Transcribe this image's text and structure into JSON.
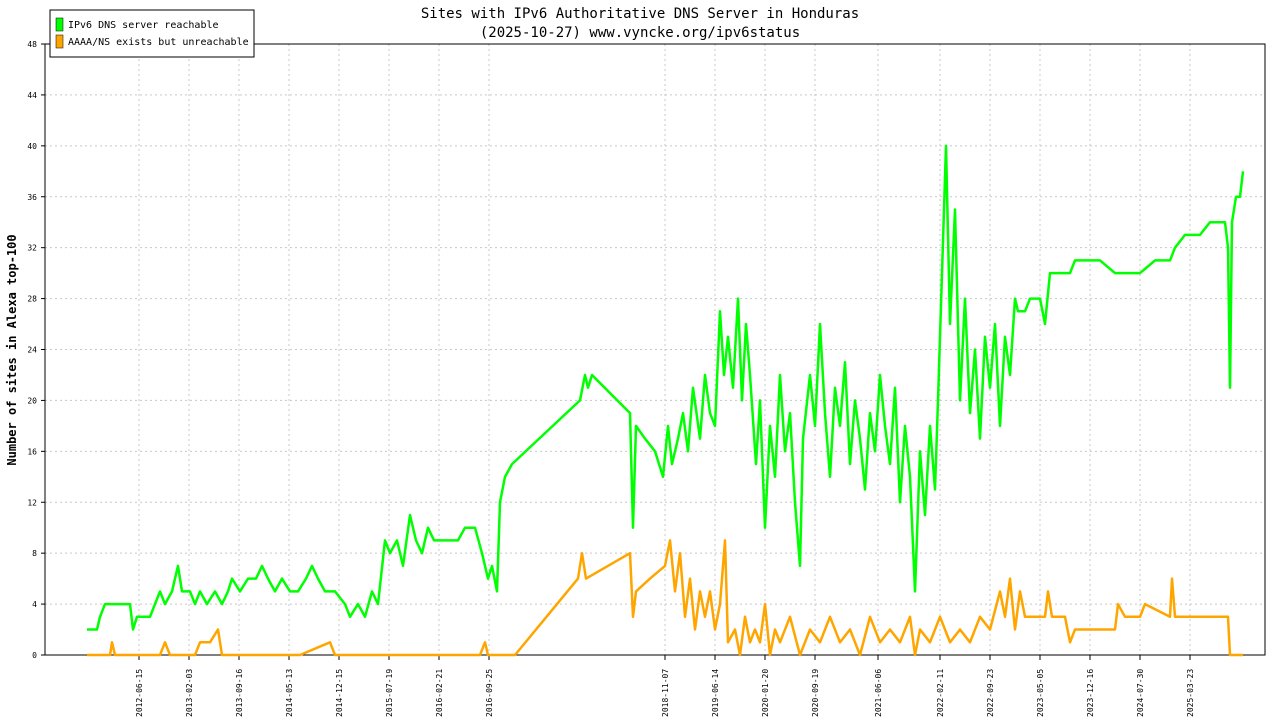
{
  "chart_data": {
    "type": "line",
    "title": "Sites with IPv6 Authoritative DNS Server in Honduras",
    "subtitle": "(2025-10-27) www.vyncke.org/ipv6status",
    "y_label": "Number of sites in Alexa top-100",
    "xlim": [
      45,
      1265
    ],
    "ylim": [
      0,
      48
    ],
    "yticks": [
      0,
      4,
      8,
      12,
      16,
      20,
      24,
      28,
      32,
      36,
      40,
      44,
      48
    ],
    "xticks": [
      {
        "value": 139,
        "label": "2012-06-15"
      },
      {
        "value": 189,
        "label": "2013-02-03"
      },
      {
        "value": 239,
        "label": "2013-09-16"
      },
      {
        "value": 289,
        "label": "2014-05-13"
      },
      {
        "value": 339,
        "label": "2014-12-15"
      },
      {
        "value": 389,
        "label": "2015-07-19"
      },
      {
        "value": 439,
        "label": "2016-02-21"
      },
      {
        "value": 489,
        "label": "2016-09-25"
      },
      {
        "value": 665,
        "label": "2018-11-07"
      },
      {
        "value": 715,
        "label": "2019-06-14"
      },
      {
        "value": 765,
        "label": "2020-01-20"
      },
      {
        "value": 815,
        "label": "2020-09-19"
      },
      {
        "value": 878,
        "label": "2021-06-06"
      },
      {
        "value": 940,
        "label": "2022-02-11"
      },
      {
        "value": 990,
        "label": "2022-09-23"
      },
      {
        "value": 1040,
        "label": "2023-05-05"
      },
      {
        "value": 1090,
        "label": "2023-12-16"
      },
      {
        "value": 1140,
        "label": "2024-07-30"
      },
      {
        "value": 1190,
        "label": "2025-03-23"
      }
    ],
    "grid": true,
    "legend": "top-left",
    "series": [
      {
        "name": "IPv6 DNS server reachable",
        "color": "#00ff00",
        "x": [
          87,
          97,
          100,
          105,
          130,
          133,
          137,
          145,
          150,
          155,
          160,
          165,
          172,
          178,
          182,
          190,
          195,
          200,
          207,
          215,
          222,
          228,
          232,
          240,
          248,
          256,
          262,
          268,
          275,
          282,
          290,
          298,
          306,
          312,
          318,
          325,
          335,
          345,
          350,
          358,
          365,
          372,
          378,
          385,
          390,
          397,
          403,
          410,
          416,
          422,
          428,
          434,
          442,
          450,
          458,
          465,
          475,
          482,
          488,
          492,
          497,
          500,
          505,
          512,
          580,
          585,
          588,
          592,
          630,
          633,
          636,
          645,
          655,
          663,
          668,
          672,
          678,
          683,
          688,
          693,
          700,
          705,
          710,
          715,
          720,
          724,
          728,
          733,
          738,
          742,
          746,
          750,
          756,
          760,
          765,
          770,
          775,
          780,
          785,
          790,
          795,
          800,
          803,
          810,
          815,
          820,
          825,
          830,
          835,
          840,
          845,
          850,
          855,
          860,
          865,
          870,
          875,
          880,
          885,
          890,
          895,
          900,
          905,
          910,
          915,
          920,
          925,
          930,
          935,
          938,
          942,
          946,
          950,
          955,
          960,
          965,
          970,
          975,
          980,
          985,
          990,
          995,
          1000,
          1005,
          1010,
          1015,
          1018,
          1025,
          1030,
          1040,
          1045,
          1050,
          1070,
          1075,
          1100,
          1115,
          1125,
          1140,
          1155,
          1170,
          1175,
          1185,
          1200,
          1210,
          1225,
          1228,
          1230,
          1232,
          1236,
          1240,
          1243
        ],
        "values": [
          2,
          2,
          3,
          4,
          4,
          2,
          3,
          3,
          3,
          4,
          5,
          4,
          5,
          7,
          5,
          5,
          4,
          5,
          4,
          5,
          4,
          5,
          6,
          5,
          6,
          6,
          7,
          6,
          5,
          6,
          5,
          5,
          6,
          7,
          6,
          5,
          5,
          4,
          3,
          4,
          3,
          5,
          4,
          9,
          8,
          9,
          7,
          11,
          9,
          8,
          10,
          9,
          9,
          9,
          9,
          10,
          10,
          8,
          6,
          7,
          5,
          12,
          14,
          15,
          20,
          22,
          21,
          22,
          19,
          10,
          18,
          17,
          16,
          14,
          18,
          15,
          17,
          19,
          16,
          21,
          17,
          22,
          19,
          18,
          27,
          22,
          25,
          21,
          28,
          20,
          26,
          22,
          15,
          20,
          10,
          18,
          14,
          22,
          16,
          19,
          12,
          7,
          17,
          22,
          18,
          26,
          19,
          14,
          21,
          18,
          23,
          15,
          20,
          17,
          13,
          19,
          16,
          22,
          18,
          15,
          21,
          12,
          18,
          14,
          5,
          16,
          11,
          18,
          13,
          20,
          30,
          40,
          26,
          35,
          20,
          28,
          19,
          24,
          17,
          25,
          21,
          26,
          18,
          25,
          22,
          28,
          27,
          27,
          28,
          28,
          26,
          30,
          30,
          31,
          31,
          30,
          30,
          30,
          31,
          31,
          32,
          33,
          33,
          34,
          34,
          32,
          21,
          34,
          36,
          36,
          38
        ]
      },
      {
        "name": "AAAA/NS exists but unreachable",
        "color": "#ffa500",
        "x": [
          87,
          110,
          112,
          115,
          160,
          165,
          170,
          195,
          200,
          210,
          218,
          222,
          300,
          330,
          335,
          480,
          485,
          488,
          515,
          578,
          582,
          586,
          630,
          633,
          636,
          650,
          665,
          670,
          675,
          680,
          685,
          690,
          695,
          700,
          705,
          710,
          715,
          720,
          725,
          728,
          735,
          740,
          745,
          750,
          755,
          760,
          765,
          770,
          775,
          780,
          790,
          800,
          810,
          820,
          830,
          840,
          850,
          860,
          870,
          880,
          890,
          900,
          910,
          915,
          920,
          930,
          940,
          950,
          960,
          970,
          980,
          990,
          1000,
          1005,
          1010,
          1015,
          1020,
          1025,
          1045,
          1048,
          1052,
          1065,
          1070,
          1075,
          1115,
          1118,
          1125,
          1140,
          1145,
          1170,
          1172,
          1175,
          1200,
          1228,
          1230,
          1243
        ],
        "values": [
          0,
          0,
          1,
          0,
          0,
          1,
          0,
          0,
          1,
          1,
          2,
          0,
          0,
          1,
          0,
          0,
          1,
          0,
          0,
          6,
          8,
          6,
          8,
          3,
          5,
          6,
          7,
          9,
          5,
          8,
          3,
          6,
          2,
          5,
          3,
          5,
          2,
          4,
          9,
          1,
          2,
          0,
          3,
          1,
          2,
          1,
          4,
          0,
          2,
          1,
          3,
          0,
          2,
          1,
          3,
          1,
          2,
          0,
          3,
          1,
          2,
          1,
          3,
          0,
          2,
          1,
          3,
          1,
          2,
          1,
          3,
          2,
          5,
          3,
          6,
          2,
          5,
          3,
          3,
          5,
          3,
          3,
          1,
          2,
          2,
          4,
          3,
          3,
          4,
          3,
          6,
          3,
          3,
          3,
          0,
          0
        ]
      }
    ]
  }
}
